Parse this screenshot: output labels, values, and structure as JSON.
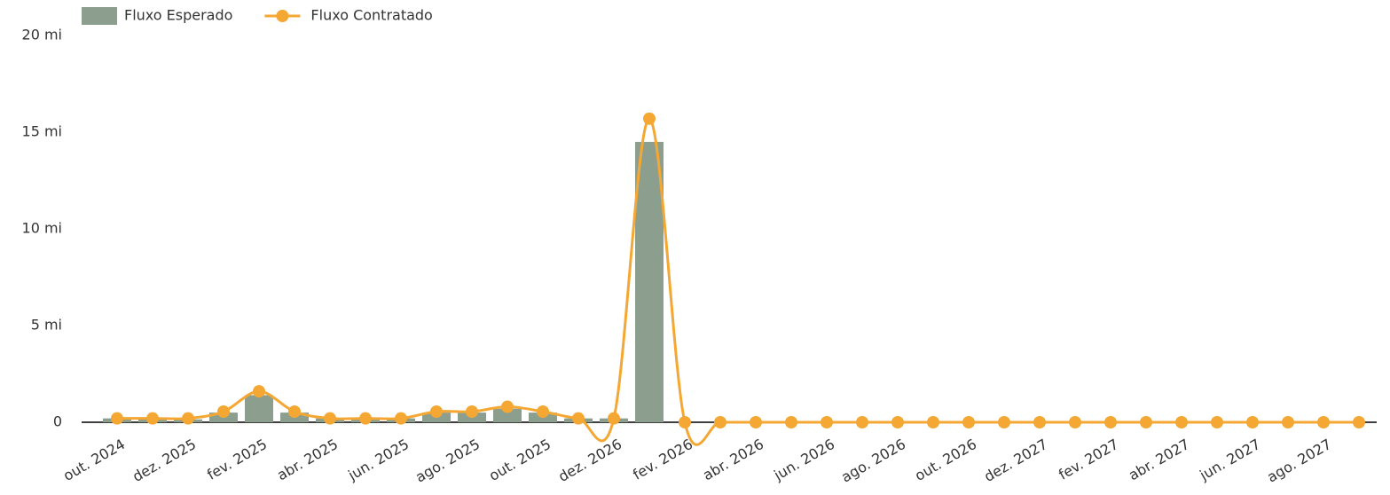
{
  "chart_data": {
    "type": "bar-line",
    "categories": [
      "out. 2024",
      null,
      "dez. 2025",
      null,
      "fev. 2025",
      null,
      "abr. 2025",
      null,
      "jun. 2025",
      null,
      "ago. 2025",
      null,
      "out. 2025",
      null,
      "dez. 2026",
      null,
      "fev. 2026",
      null,
      "abr. 2026",
      null,
      "jun. 2026",
      null,
      "ago. 2026",
      null,
      "out. 2026",
      null,
      "dez. 2027",
      null,
      "fev. 2027",
      null,
      "abr. 2027",
      null,
      "jun. 2027",
      null,
      "ago. 2027",
      null
    ],
    "series": [
      {
        "name": "Fluxo Esperado",
        "type": "bar",
        "color": "#8c9f8f",
        "values": [
          0.2,
          0.2,
          0.15,
          0.5,
          1.4,
          0.5,
          0.2,
          0.2,
          0.2,
          0.5,
          0.5,
          0.7,
          0.5,
          0.2,
          0.2,
          14.5,
          0,
          0,
          0,
          0,
          0,
          0,
          0,
          0,
          0,
          0,
          0,
          0,
          0,
          0,
          0,
          0,
          0,
          0,
          0,
          0
        ]
      },
      {
        "name": "Fluxo Contratado",
        "type": "line",
        "color": "#f5a733",
        "values": [
          0.2,
          0.2,
          0.2,
          0.55,
          1.6,
          0.55,
          0.2,
          0.2,
          0.2,
          0.55,
          0.55,
          0.8,
          0.55,
          0.2,
          0.2,
          15.7,
          0,
          0,
          0,
          0,
          0,
          0,
          0,
          0,
          0,
          0,
          0,
          0,
          0,
          0,
          0,
          0,
          0,
          0,
          0,
          0
        ]
      }
    ],
    "ylim": [
      0,
      20
    ],
    "yticks": [
      0,
      {
        "value": 5,
        "label": "5 mi"
      },
      {
        "value": 10,
        "label": "10 mi"
      },
      {
        "value": 15,
        "label": "15 mi"
      },
      {
        "value": 20,
        "label": "20 mi"
      }
    ],
    "legend": "top-left"
  }
}
